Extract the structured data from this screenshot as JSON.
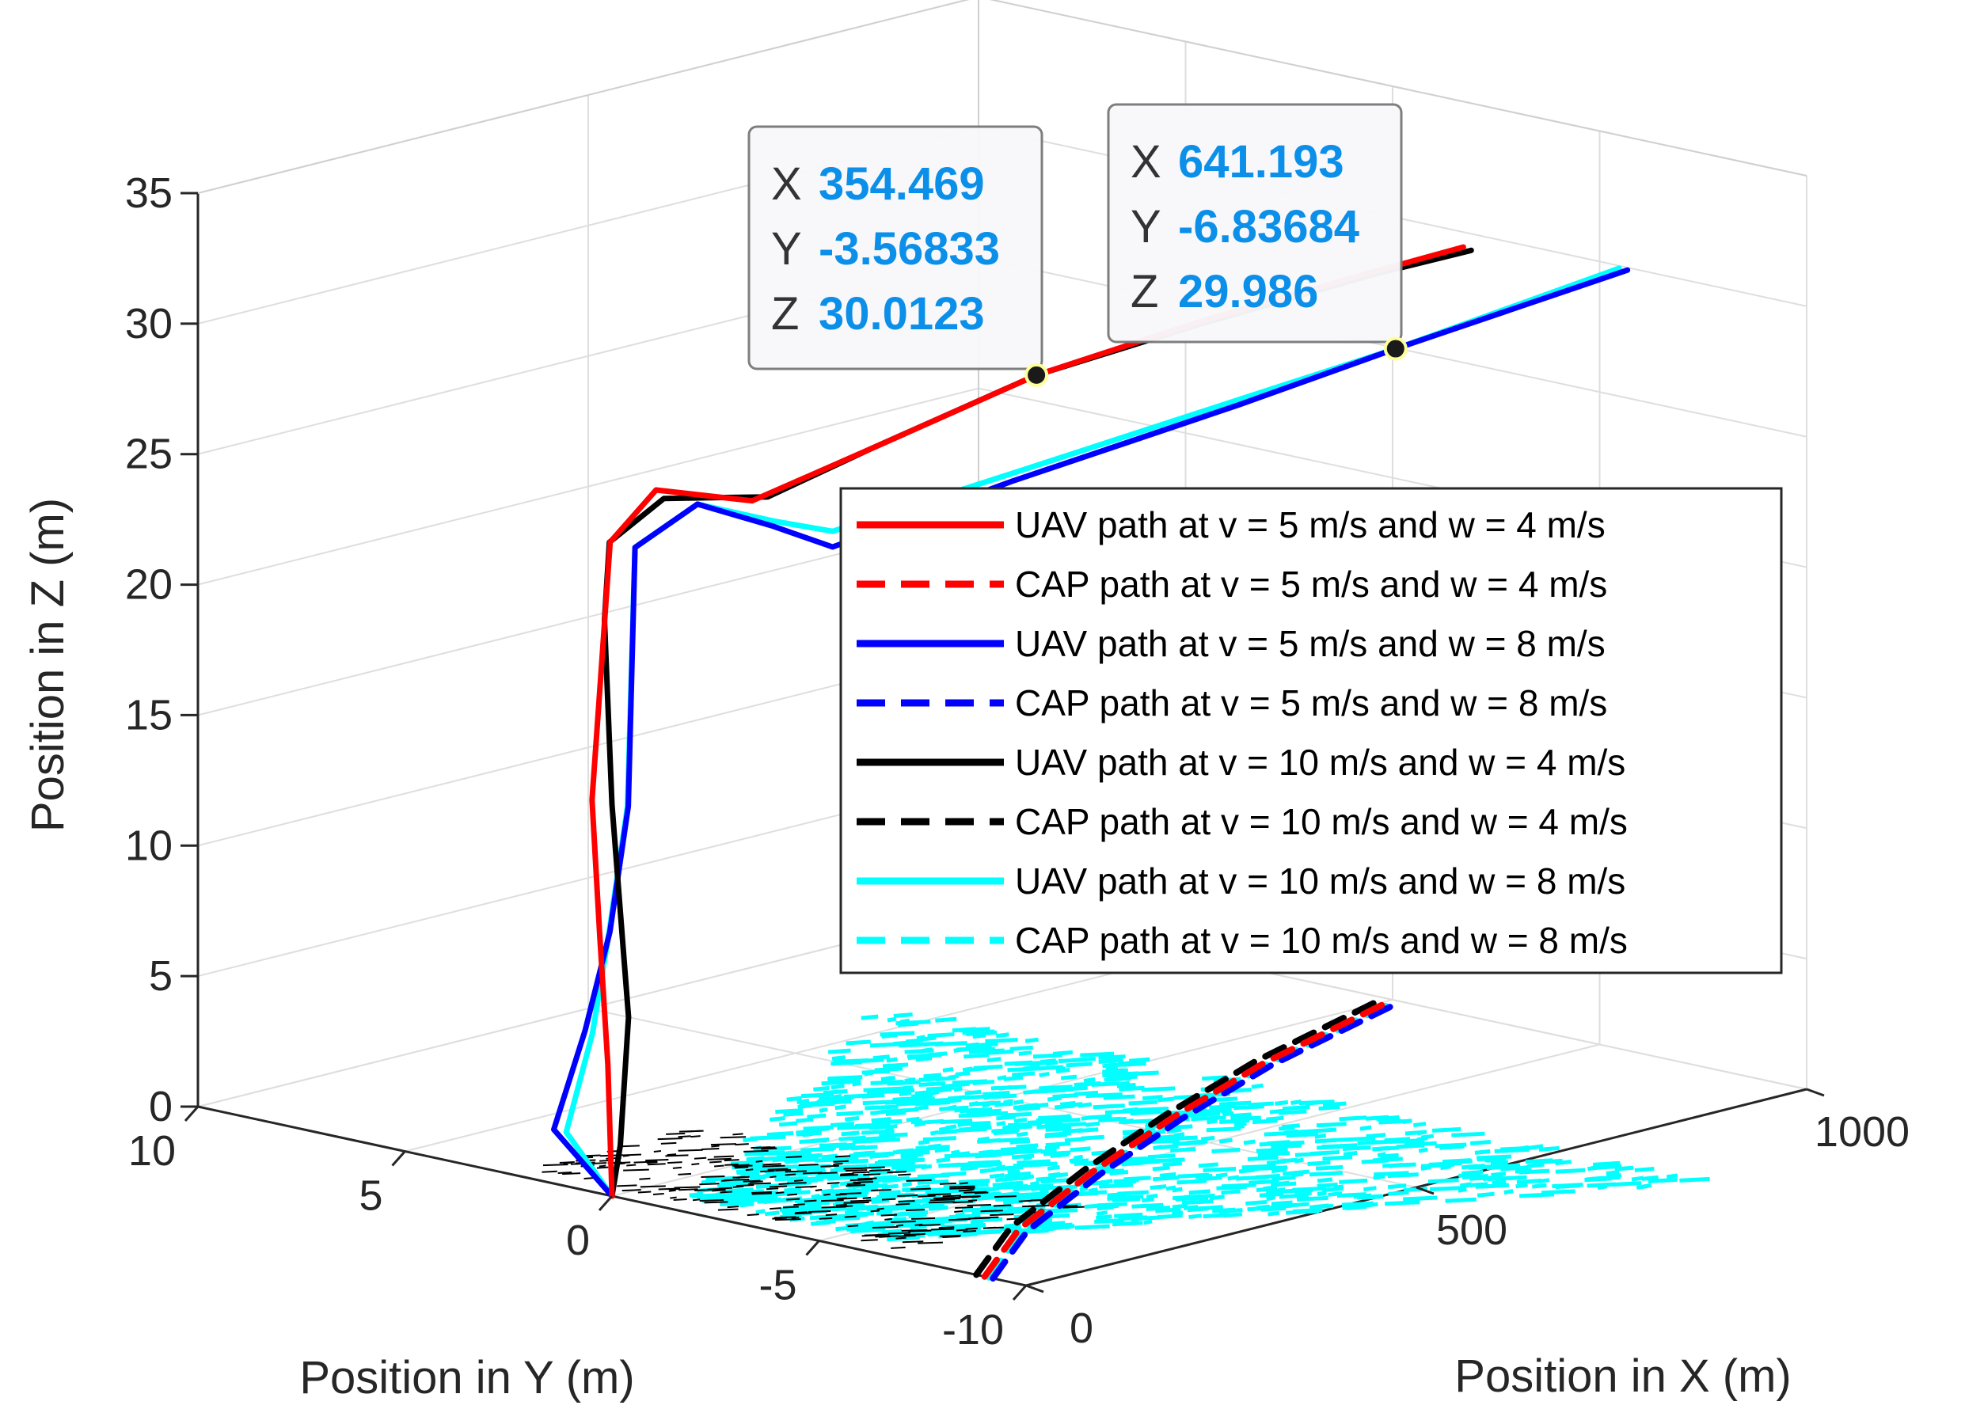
{
  "chart_data": {
    "type": "line3d",
    "title": "",
    "xlabel": "Position in X (m)",
    "ylabel": "Position in Y (m)",
    "zlabel": "Position in Z (m)",
    "xlim": [
      0,
      1000
    ],
    "ylim": [
      -10,
      10
    ],
    "zlim": [
      0,
      35
    ],
    "x_ticks": [
      0,
      500,
      1000
    ],
    "y_ticks": [
      10,
      5,
      0,
      -5,
      -10
    ],
    "z_ticks": [
      0,
      5,
      10,
      15,
      20,
      25,
      30,
      35
    ],
    "grid": true,
    "legend_position": "center-right",
    "series": [
      {
        "name": "UAV path at v = 5 m/s and w = 4 m/s",
        "color": "#ff0000",
        "style": "solid",
        "x": [
          0,
          0,
          0,
          1,
          2,
          3,
          30,
          100,
          200,
          354.469,
          500,
          650,
          730
        ],
        "y": [
          0,
          0.1,
          0.3,
          0.5,
          0.3,
          0.1,
          -0.5,
          -1.5,
          -2.5,
          -3.56833,
          -4.8,
          -6.1,
          -6.8
        ],
        "z": [
          0,
          5,
          10,
          15,
          20,
          25,
          27,
          26.4,
          28,
          30.0123,
          31.4,
          32.6,
          33.2
        ]
      },
      {
        "name": "CAP path at v = 5 m/s and w = 4 m/s",
        "color": "#ff0000",
        "style": "dashed",
        "x": [
          0,
          150,
          350,
          550,
          750,
          1000
        ],
        "y": [
          -9,
          -7,
          -5,
          -3.2,
          -1.6,
          0
        ],
        "z": [
          0,
          0,
          0,
          0,
          0,
          0
        ]
      },
      {
        "name": "UAV path at v = 5 m/s and w = 8 m/s",
        "color": "#0000ff",
        "style": "solid",
        "x": [
          0,
          5,
          8,
          8,
          5,
          3,
          30,
          100,
          150,
          300,
          500,
          641.193,
          850
        ],
        "y": [
          0,
          1.5,
          0.8,
          0.2,
          -0.3,
          -0.5,
          -1.5,
          -2,
          -2.5,
          -4,
          -5.7,
          -6.83684,
          -8.5
        ],
        "z": [
          0,
          2,
          6,
          10,
          15,
          25,
          26.8,
          25.6,
          24.6,
          26.5,
          28.5,
          29.986,
          32
        ]
      },
      {
        "name": "CAP path at v = 5 m/s and w = 8 m/s",
        "color": "#0000ff",
        "style": "dashed",
        "x": [
          0,
          150,
          350,
          550,
          750,
          1000
        ],
        "y": [
          -9.2,
          -7.2,
          -5.2,
          -3.4,
          -1.8,
          -0.2
        ],
        "z": [
          0,
          0,
          0,
          0,
          0,
          0
        ]
      },
      {
        "name": "UAV path at v = 10 m/s and w = 4 m/s",
        "color": "#000000",
        "style": "solid",
        "x": [
          0,
          0,
          0,
          0,
          1,
          2,
          40,
          120,
          200,
          354.469,
          500,
          650,
          740
        ],
        "y": [
          0,
          -0.2,
          -0.4,
          0,
          0.2,
          0.1,
          -0.5,
          -1.5,
          -2.5,
          -3.56833,
          -4.8,
          -6.1,
          -6.8
        ],
        "z": [
          0,
          2,
          7,
          15,
          22,
          25,
          26.6,
          26.4,
          28,
          30.0123,
          31.3,
          32.5,
          33
        ]
      },
      {
        "name": "CAP path at v = 10 m/s and w = 4 m/s",
        "color": "#000000",
        "style": "dashed",
        "x": [
          0,
          150,
          350,
          550,
          750,
          1000
        ],
        "y": [
          -8.8,
          -6.8,
          -4.8,
          -3,
          -1.4,
          0.2
        ],
        "z": [
          0,
          0,
          0,
          0,
          0,
          0
        ]
      },
      {
        "name": "UAV path at v = 10 m/s and w = 8 m/s",
        "color": "#00ffff",
        "style": "solid",
        "x": [
          0,
          5,
          7,
          7,
          4,
          3,
          30,
          100,
          150,
          300,
          500,
          641.193,
          850
        ],
        "y": [
          0,
          1.2,
          0.6,
          0.2,
          -0.3,
          -0.5,
          -1.5,
          -2,
          -2.5,
          -4,
          -5.7,
          -6.83684,
          -8.3
        ],
        "z": [
          0,
          2,
          6,
          10,
          15,
          25,
          26.8,
          25.8,
          25.2,
          26.8,
          28.7,
          29.986,
          32
        ]
      },
      {
        "name": "CAP path at v = 10 m/s and w = 8 m/s",
        "color": "#00ffff",
        "style": "dashed",
        "x": [
          0,
          150,
          350,
          550,
          750,
          1000
        ],
        "y": [
          -9.1,
          -7.1,
          -5.1,
          -3.3,
          -1.7,
          -0.1
        ],
        "z": [
          0,
          0,
          0,
          0,
          0,
          0
        ]
      }
    ],
    "datatips": [
      {
        "x_label": "X",
        "x": "354.469",
        "y_label": "Y",
        "y": "-3.56833",
        "z_label": "Z",
        "z": "30.0123"
      },
      {
        "x_label": "X",
        "x": "641.193",
        "y_label": "Y",
        "y": "-6.83684",
        "z_label": "Z",
        "z": "29.986"
      }
    ]
  }
}
